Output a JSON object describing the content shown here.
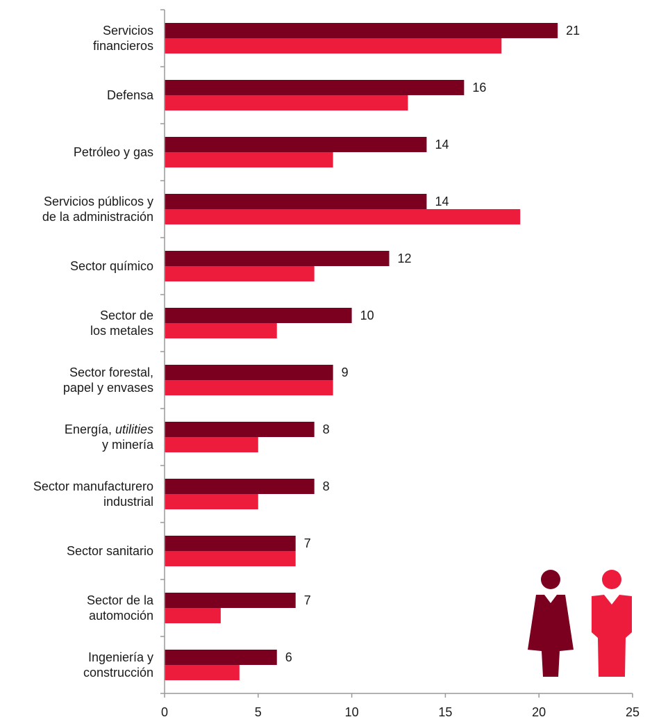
{
  "chart_data": {
    "type": "bar",
    "orientation": "horizontal",
    "categories": [
      [
        "Servicios",
        "financieros"
      ],
      [
        "Defensa"
      ],
      [
        "Petróleo y gas"
      ],
      [
        "Servicios públicos y",
        "de la administración"
      ],
      [
        "Sector químico"
      ],
      [
        "Sector de",
        "los metales"
      ],
      [
        "Sector forestal,",
        "papel y envases"
      ],
      [
        "Energía, utilities",
        "y minería"
      ],
      [
        "Sector manufacturero",
        "industrial"
      ],
      [
        "Sector sanitario"
      ],
      [
        "Sector de la",
        "automoción"
      ],
      [
        "Ingeniería y",
        "construcción"
      ]
    ],
    "series": [
      {
        "color": "#7B0020",
        "values": [
          21,
          16,
          14,
          14,
          12,
          10,
          9,
          8,
          8,
          7,
          7,
          6
        ],
        "show_labels": true
      },
      {
        "color": "#EE1C3C",
        "values": [
          18,
          13,
          9,
          19,
          8,
          6,
          9,
          5,
          5,
          7,
          3,
          4
        ],
        "show_labels": false
      }
    ],
    "xlim": [
      0,
      25
    ],
    "xticks": [
      0,
      5,
      10,
      15,
      20,
      25
    ],
    "title": "",
    "xlabel": "",
    "ylabel": "",
    "grid": false,
    "legend": {
      "placement": "bottom-right",
      "icons": [
        {
          "name": "person-dark-icon",
          "color": "#7B0020"
        },
        {
          "name": "person-red-icon",
          "color": "#EE1C3C"
        }
      ]
    }
  }
}
